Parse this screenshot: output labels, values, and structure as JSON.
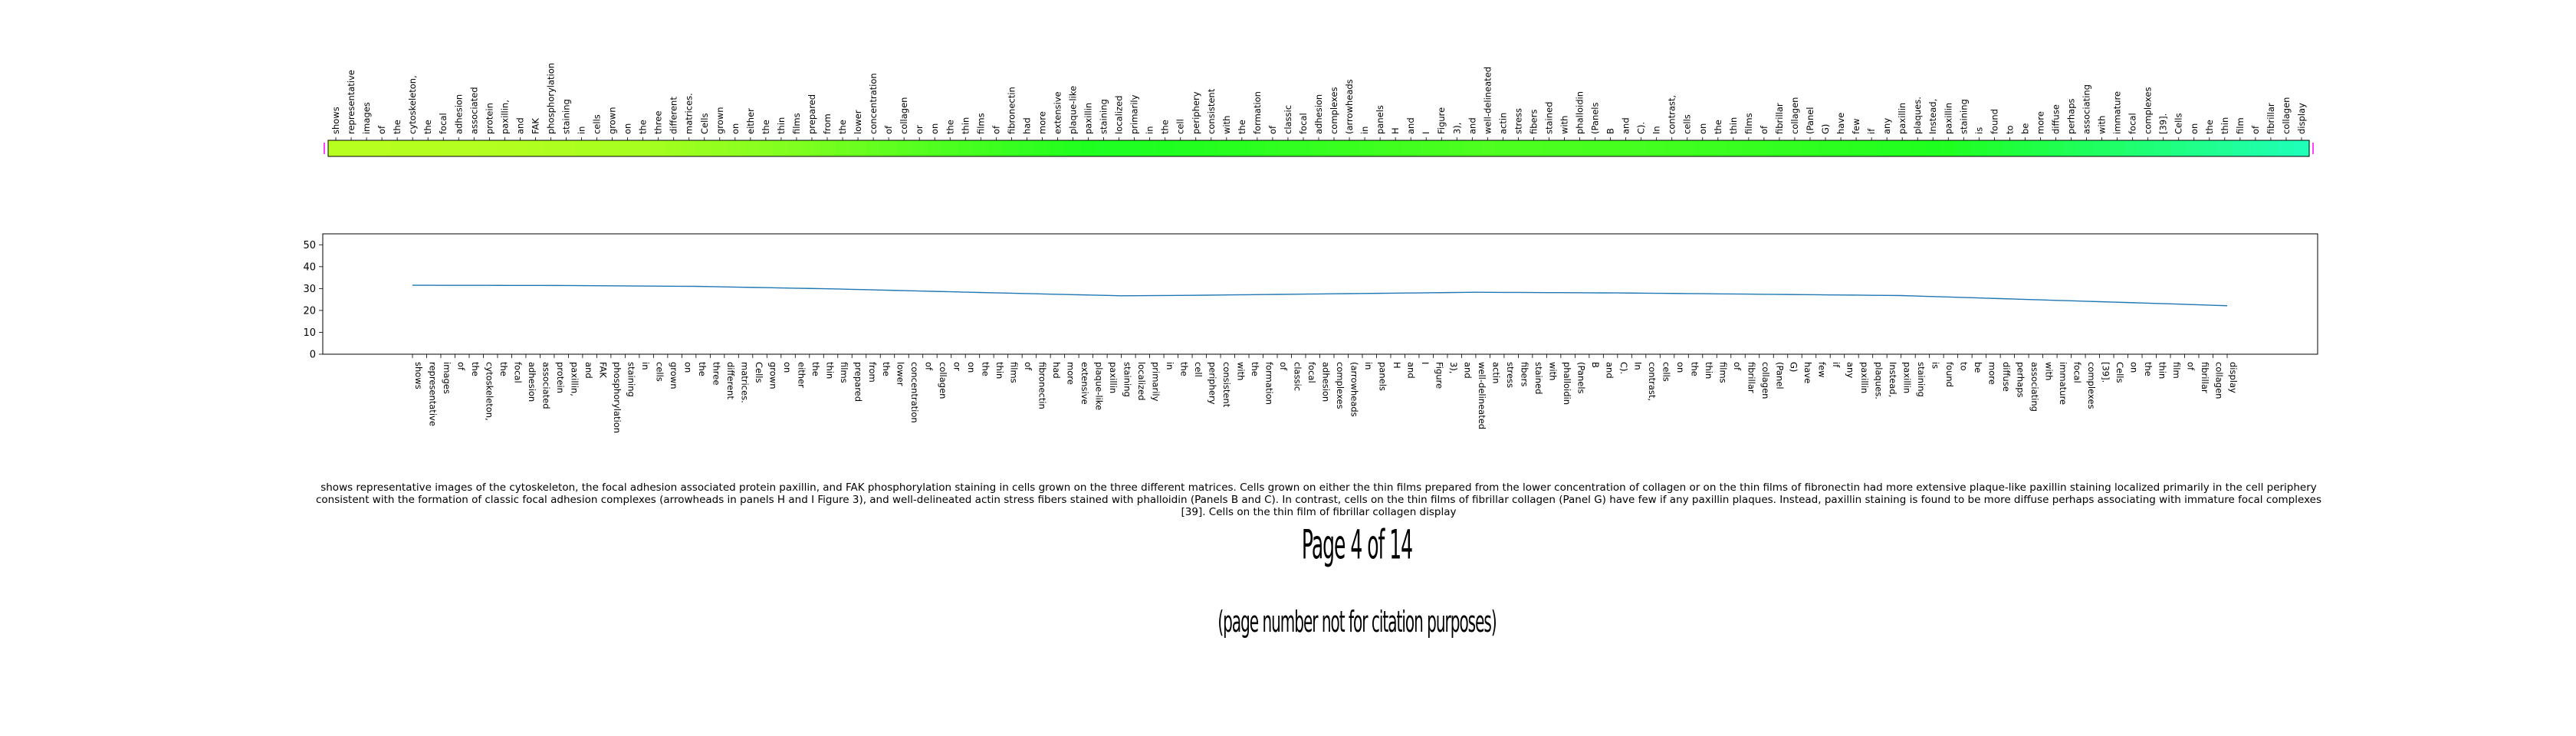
{
  "chart_data": [
    {
      "type": "heatmap",
      "tokens": [
        "shows",
        "representative",
        "images",
        "of",
        "the",
        "cytoskeleton,",
        "the",
        "focal",
        "adhesion",
        "associated",
        "protein",
        "paxillin,",
        "and",
        "FAK",
        "phosphorylation",
        "staining",
        "in",
        "cells",
        "grown",
        "on",
        "the",
        "three",
        "different",
        "matrices.",
        "Cells",
        "grown",
        "on",
        "either",
        "the",
        "thin",
        "films",
        "prepared",
        "from",
        "the",
        "lower",
        "concentration",
        "of",
        "collagen",
        "or",
        "on",
        "the",
        "thin",
        "films",
        "of",
        "fibronectin",
        "had",
        "more",
        "extensive",
        "plaque-like",
        "paxillin",
        "staining",
        "localized",
        "primarily",
        "in",
        "the",
        "cell",
        "periphery",
        "consistent",
        "with",
        "the",
        "formation",
        "of",
        "classic",
        "focal",
        "adhesion",
        "complexes",
        "(arrowheads",
        "in",
        "panels",
        "H",
        "and",
        "I",
        "Figure",
        "3),",
        "and",
        "well-delineated",
        "actin",
        "stress",
        "fibers",
        "stained",
        "with",
        "phalloidin",
        "(Panels",
        "B",
        "and",
        "C).",
        "In",
        "contrast,",
        "cells",
        "on",
        "the",
        "thin",
        "films",
        "of",
        "fibrillar",
        "collagen",
        "(Panel",
        "G)",
        "have",
        "few",
        "if",
        "any",
        "paxillin",
        "plaques.",
        "Instead,",
        "paxillin",
        "staining",
        "is",
        "found",
        "to",
        "be",
        "more",
        "diffuse",
        "perhaps",
        "associating",
        "with",
        "immature",
        "focal",
        "complexes",
        "[39].",
        "Cells",
        "on",
        "the",
        "thin",
        "film",
        "of",
        "fibrillar",
        "collagen",
        "display"
      ],
      "colormap": "gist_rainbow",
      "value_range": [
        20,
        32
      ]
    },
    {
      "type": "line",
      "y_ticks": [
        "0",
        "10",
        "20",
        "30",
        "40",
        "50"
      ],
      "ylim": [
        0,
        55
      ],
      "x_tick_labels": [
        "shows",
        "representative",
        "images",
        "of",
        "the",
        "cytoskeleton,",
        "the",
        "focal",
        "adhesion",
        "associated",
        "protein",
        "paxillin,",
        "and",
        "FAK",
        "phosphorylation",
        "staining",
        "in",
        "cells",
        "grown",
        "on",
        "the",
        "three",
        "different",
        "matrices.",
        "Cells",
        "grown",
        "on",
        "either",
        "the",
        "thin",
        "films",
        "prepared",
        "from",
        "the",
        "lower",
        "concentration",
        "of",
        "collagen",
        "or",
        "on",
        "the",
        "thin",
        "films",
        "of",
        "fibronectin",
        "had",
        "more",
        "extensive",
        "plaque-like",
        "paxillin",
        "staining",
        "localized",
        "primarily",
        "in",
        "the",
        "cell",
        "periphery",
        "consistent",
        "with",
        "the",
        "formation",
        "of",
        "classic",
        "focal",
        "adhesion",
        "complexes",
        "(arrowheads",
        "in",
        "panels",
        "H",
        "and",
        "I",
        "Figure",
        "3),",
        "and",
        "well-delineated",
        "actin",
        "stress",
        "fibers",
        "stained",
        "with",
        "phalloidin",
        "(Panels",
        "B",
        "and",
        "C).",
        "In",
        "contrast,",
        "cells",
        "on",
        "the",
        "thin",
        "films",
        "of",
        "fibrillar",
        "collagen",
        "(Panel",
        "G)",
        "have",
        "few",
        "if",
        "any",
        "paxillin",
        "plaques.",
        "Instead,",
        "paxillin",
        "staining",
        "is",
        "found",
        "to",
        "be",
        "more",
        "diffuse",
        "perhaps",
        "associating",
        "with",
        "immature",
        "focal",
        "complexes",
        "[39].",
        "Cells",
        "on",
        "the",
        "thin",
        "film",
        "of",
        "fibrillar",
        "collagen",
        "display"
      ],
      "anchors": [
        [
          0,
          31.5
        ],
        [
          10,
          31.4
        ],
        [
          20,
          31.0
        ],
        [
          30,
          29.8
        ],
        [
          40,
          28.2
        ],
        [
          50,
          26.7
        ],
        [
          55,
          26.9
        ],
        [
          65,
          27.6
        ],
        [
          75,
          28.3
        ],
        [
          85,
          28.0
        ],
        [
          95,
          27.4
        ],
        [
          105,
          26.8
        ],
        [
          115,
          24.8
        ],
        [
          125,
          22.8
        ],
        [
          132,
          21.3
        ],
        [
          136,
          20.2
        ]
      ],
      "line_color": "#1f77b4"
    }
  ],
  "caption": "shows representative images of the cytoskeleton, the focal adhesion associated protein paxillin, and FAK phosphorylation staining in cells grown on the three different matrices. Cells grown on either the thin films prepared from the lower concentration of collagen or on the thin films of fibronectin had more extensive plaque-like paxillin staining localized primarily in the cell periphery consistent with the formation of classic focal adhesion complexes (arrowheads in panels H and I Figure 3), and well-delineated actin stress fibers stained with phalloidin (Panels B and C). In contrast, cells on the thin films of fibrillar collagen (Panel G) have few if any paxillin plaques. Instead, paxillin staining is found to be more diffuse perhaps associating with immature focal complexes [39]. Cells on the thin film of fibrillar collagen display",
  "page_number": "Page 4 of 14",
  "page_note": "(page number not for citation purposes)"
}
